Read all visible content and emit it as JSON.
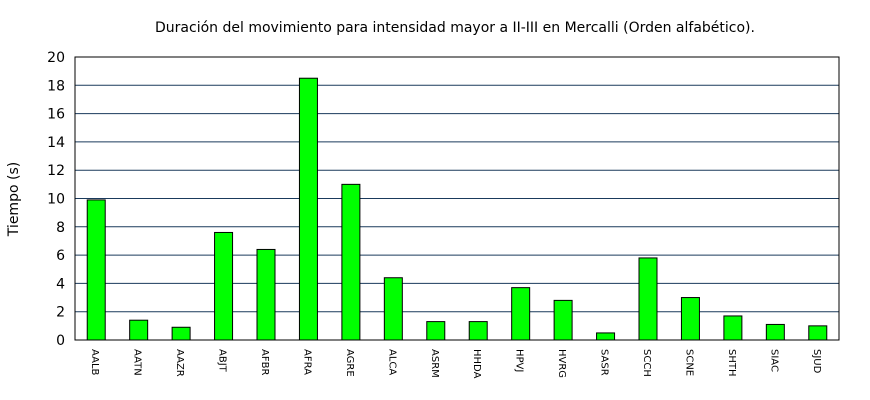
{
  "chart_data": {
    "type": "bar",
    "title": "Duración del movimiento para intensidad mayor a II-III en Mercalli (Orden alfabético).",
    "xlabel": "",
    "ylabel": "Tiempo (s)",
    "ylim": [
      0,
      20
    ],
    "yticks": [
      0,
      2,
      4,
      6,
      8,
      10,
      12,
      14,
      16,
      18,
      20
    ],
    "grid": true,
    "bar_color": "#00ff00",
    "categories": [
      "AALB",
      "AATN",
      "AAZR",
      "ABJT",
      "AFBR",
      "AFRA",
      "AGRE",
      "ALCA",
      "ASRM",
      "HHDA",
      "HPVJ",
      "HVRG",
      "SASR",
      "SCCH",
      "SCNE",
      "SHTH",
      "SIAC",
      "SJUD"
    ],
    "values": [
      9.9,
      1.4,
      0.9,
      7.6,
      6.4,
      18.5,
      11.0,
      4.4,
      1.3,
      1.3,
      3.7,
      2.8,
      0.5,
      5.8,
      3.0,
      1.7,
      1.1,
      1.0
    ]
  }
}
